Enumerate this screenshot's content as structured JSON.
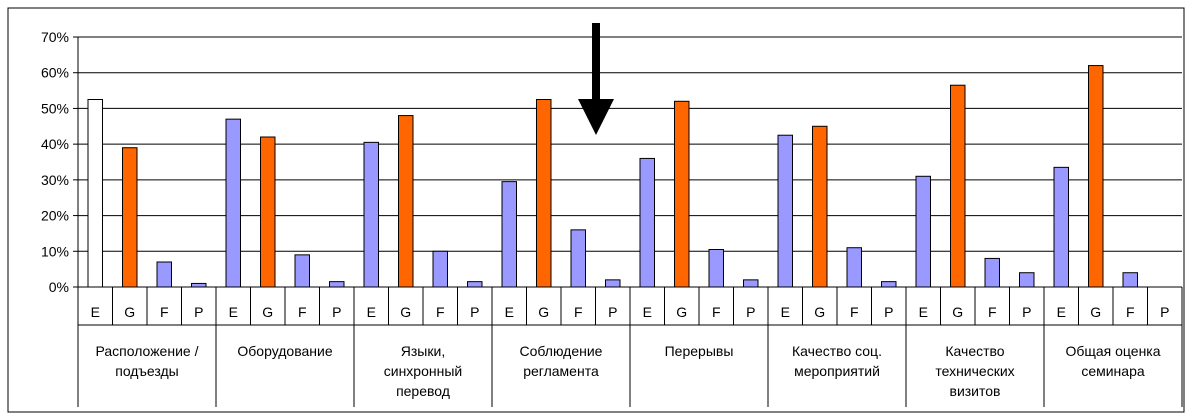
{
  "chart_data": {
    "type": "bar",
    "title": "",
    "xlabel": "",
    "ylabel": "",
    "ylim": [
      0,
      70
    ],
    "y_ticks": [
      "0%",
      "10%",
      "20%",
      "30%",
      "40%",
      "50%",
      "60%",
      "70%"
    ],
    "grid": true,
    "legend": "none",
    "groups": [
      {
        "label_lines": [
          "Расположение /",
          "подъезды"
        ],
        "bars": [
          {
            "label": "E",
            "value": 52.5,
            "color": "#ffffff"
          },
          {
            "label": "G",
            "value": 39,
            "color": "#ff6600"
          },
          {
            "label": "F",
            "value": 7,
            "color": "#9999ff"
          },
          {
            "label": "P",
            "value": 1,
            "color": "#9999ff"
          }
        ]
      },
      {
        "label_lines": [
          "Оборудование"
        ],
        "bars": [
          {
            "label": "E",
            "value": 47,
            "color": "#9999ff"
          },
          {
            "label": "G",
            "value": 42,
            "color": "#ff6600"
          },
          {
            "label": "F",
            "value": 9,
            "color": "#9999ff"
          },
          {
            "label": "P",
            "value": 1.5,
            "color": "#9999ff"
          }
        ]
      },
      {
        "label_lines": [
          "Языки,",
          "синхронный",
          "перевод"
        ],
        "bars": [
          {
            "label": "E",
            "value": 40.5,
            "color": "#9999ff"
          },
          {
            "label": "G",
            "value": 48,
            "color": "#ff6600"
          },
          {
            "label": "F",
            "value": 10,
            "color": "#9999ff"
          },
          {
            "label": "P",
            "value": 1.5,
            "color": "#9999ff"
          }
        ]
      },
      {
        "label_lines": [
          "Соблюдение",
          "регламента"
        ],
        "bars": [
          {
            "label": "E",
            "value": 29.5,
            "color": "#9999ff"
          },
          {
            "label": "G",
            "value": 52.5,
            "color": "#ff6600"
          },
          {
            "label": "F",
            "value": 16,
            "color": "#9999ff"
          },
          {
            "label": "P",
            "value": 2,
            "color": "#9999ff"
          }
        ]
      },
      {
        "label_lines": [
          "Перерывы"
        ],
        "bars": [
          {
            "label": "E",
            "value": 36,
            "color": "#9999ff"
          },
          {
            "label": "G",
            "value": 52,
            "color": "#ff6600"
          },
          {
            "label": "F",
            "value": 10.5,
            "color": "#9999ff"
          },
          {
            "label": "P",
            "value": 2,
            "color": "#9999ff"
          }
        ]
      },
      {
        "label_lines": [
          "Качество соц.",
          "мероприятий"
        ],
        "bars": [
          {
            "label": "E",
            "value": 42.5,
            "color": "#9999ff"
          },
          {
            "label": "G",
            "value": 45,
            "color": "#ff6600"
          },
          {
            "label": "F",
            "value": 11,
            "color": "#9999ff"
          },
          {
            "label": "P",
            "value": 1.5,
            "color": "#9999ff"
          }
        ]
      },
      {
        "label_lines": [
          "Качество",
          "технических",
          "визитов"
        ],
        "bars": [
          {
            "label": "E",
            "value": 31,
            "color": "#9999ff"
          },
          {
            "label": "G",
            "value": 56.5,
            "color": "#ff6600"
          },
          {
            "label": "F",
            "value": 8,
            "color": "#9999ff"
          },
          {
            "label": "P",
            "value": 4,
            "color": "#9999ff"
          }
        ]
      },
      {
        "label_lines": [
          "Общая оценка",
          "семинара"
        ],
        "bars": [
          {
            "label": "E",
            "value": 33.5,
            "color": "#9999ff"
          },
          {
            "label": "G",
            "value": 62,
            "color": "#ff6600"
          },
          {
            "label": "F",
            "value": 4,
            "color": "#9999ff"
          },
          {
            "label": "P",
            "value": 0,
            "color": "#9999ff"
          }
        ]
      }
    ],
    "annotation": "down-arrow"
  }
}
